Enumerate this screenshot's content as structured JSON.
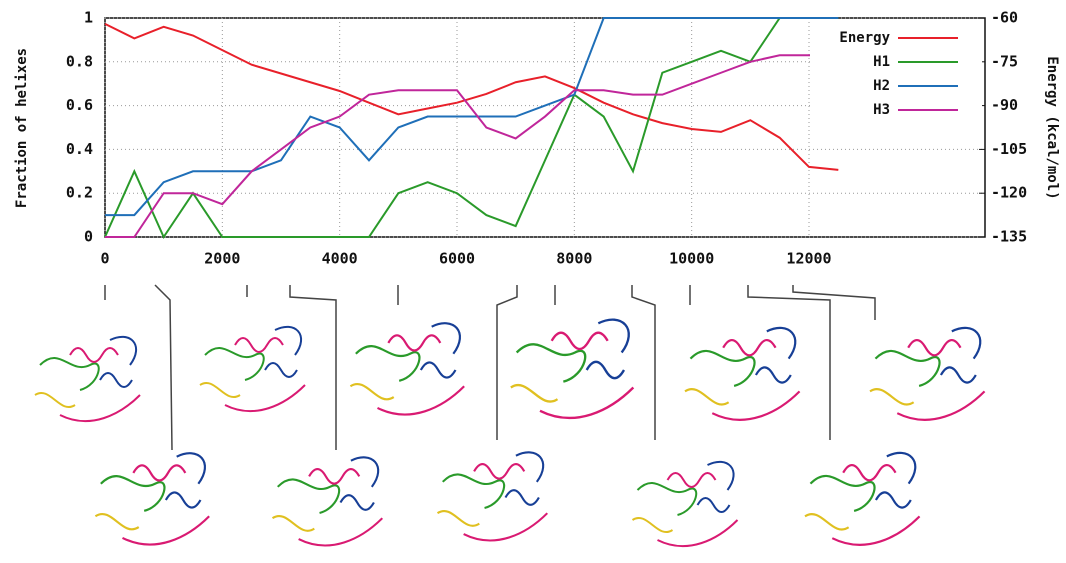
{
  "chart_data": {
    "type": "line",
    "y_label": "Fraction of helixes",
    "y2_label": "Energy (kcal/mol)",
    "xlim": [
      0,
      15000
    ],
    "xticks": [
      0,
      2000,
      4000,
      6000,
      8000,
      10000,
      12000
    ],
    "ylim": [
      0,
      1
    ],
    "yticks": [
      0,
      0.2,
      0.4,
      0.6,
      0.8,
      1
    ],
    "y2lim": [
      -135,
      -60
    ],
    "y2ticks": [
      -135,
      -120,
      -105,
      -90,
      -75,
      -60
    ],
    "grid": true,
    "legend": "top-right",
    "x": [
      0,
      500,
      1000,
      1500,
      2000,
      2500,
      3000,
      3500,
      4000,
      4500,
      5000,
      5500,
      6000,
      6500,
      7000,
      7500,
      8000,
      8500,
      9000,
      9500,
      10000,
      10500,
      11000,
      11500,
      12000,
      12500
    ],
    "series": [
      {
        "name": "Energy",
        "color": "#e8202a",
        "axis": "y2",
        "values": [
          -62,
          -67,
          -63,
          -66,
          -71,
          -76,
          -79,
          -82,
          -85,
          -89,
          -93,
          -91,
          -89,
          -86,
          -82,
          -80,
          -84,
          -89,
          -93,
          -96,
          -98,
          -99,
          -95,
          -101,
          -111,
          -112
        ]
      },
      {
        "name": "H1",
        "color": "#2a9a2a",
        "values": [
          0,
          0.3,
          0,
          0.2,
          0,
          0,
          0,
          0,
          0,
          0,
          0.2,
          0.25,
          0.2,
          0.1,
          0.05,
          0.35,
          0.65,
          0.55,
          0.3,
          0.75,
          0.8,
          0.85,
          0.8,
          1,
          1,
          1
        ]
      },
      {
        "name": "H2",
        "color": "#1f6fb8",
        "values": [
          0.1,
          0.1,
          0.25,
          0.3,
          0.3,
          0.3,
          0.35,
          0.55,
          0.5,
          0.35,
          0.5,
          0.55,
          0.55,
          0.55,
          0.55,
          0.6,
          0.65,
          1,
          1,
          1,
          1,
          1,
          1,
          1,
          1,
          1
        ]
      },
      {
        "name": "H3",
        "color": "#c0269a",
        "values": [
          0,
          0,
          0.2,
          0.2,
          0.15,
          0.3,
          0.4,
          0.5,
          0.55,
          0.65,
          0.67,
          0.67,
          0.67,
          0.5,
          0.45,
          0.55,
          0.67,
          0.67,
          0.65,
          0.65,
          0.7,
          0.75,
          0.8,
          0.83,
          0.83,
          0.83
        ]
      }
    ]
  }
}
